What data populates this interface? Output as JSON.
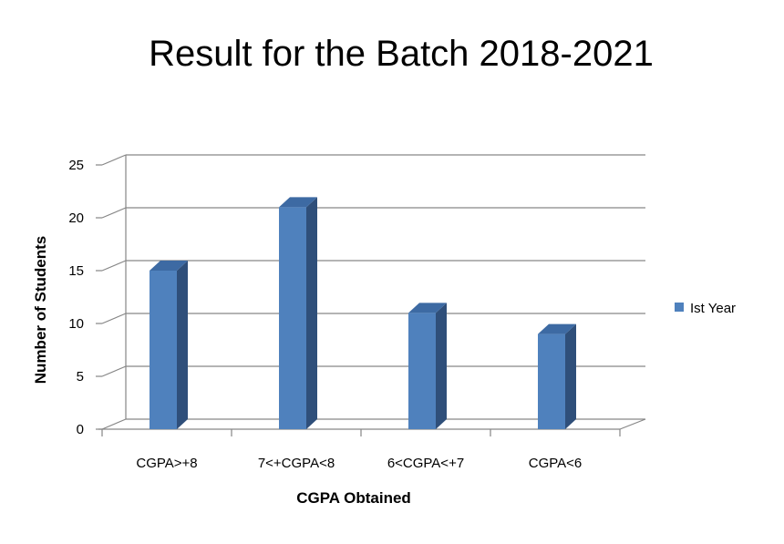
{
  "chart_data": {
    "type": "bar",
    "style": "3d-column",
    "title": "Result for the Batch 2018-2021",
    "xlabel": "CGPA Obtained",
    "ylabel": "Number of Students",
    "categories": [
      "CGPA>+8",
      "7<+CGPA<8",
      "6<CGPA<+7",
      "CGPA<6"
    ],
    "series": [
      {
        "name": "Ist Year",
        "values": [
          15,
          21,
          11,
          9
        ]
      }
    ],
    "ylim": [
      0,
      25
    ],
    "yticks": [
      "0",
      "5",
      "10",
      "15",
      "20",
      "25"
    ],
    "grid": true,
    "legend_position": "right",
    "colors": {
      "bar_front": "#4f81bd",
      "bar_side": "#2f4f7a",
      "bar_top": "#3d6aa3",
      "grid": "#868686"
    }
  }
}
